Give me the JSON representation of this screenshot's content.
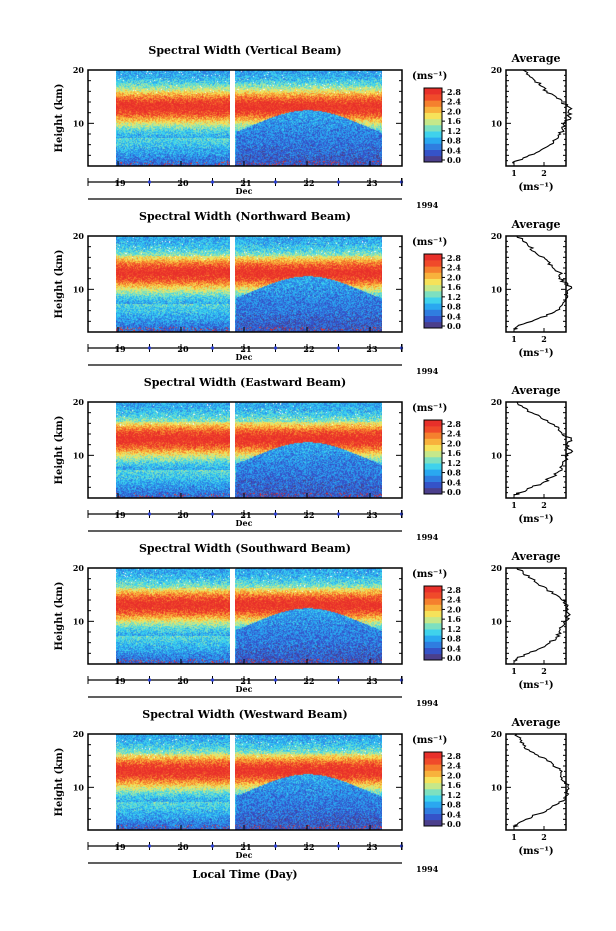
{
  "x_axis_label": "Local Time (Day)",
  "colors": {
    "colormap": [
      "#4b3f8c",
      "#3553c8",
      "#2f7de0",
      "#2aa8f0",
      "#3fd2ec",
      "#7de0c0",
      "#c6e88a",
      "#f6e25a",
      "#f8b23c",
      "#f5802e",
      "#f04a2a",
      "#e8302a"
    ]
  },
  "chart_data": [
    {
      "type": "heatmap",
      "title": "Spectral Width (Vertical Beam)",
      "ylabel": "Height (km)",
      "yticks": [
        10,
        20
      ],
      "ylim": [
        2,
        20
      ],
      "xticks": [
        "19",
        "20",
        "21",
        "22",
        "23"
      ],
      "month_label": "Dec",
      "year_label": "1994",
      "colorbar": {
        "unit": "(ms⁻¹)",
        "ticks": [
          "2.8",
          "2.4",
          "2.0",
          "1.6",
          "1.2",
          "0.8",
          "0.4",
          "0.0"
        ]
      },
      "profile": {
        "title": "Average",
        "xlabel": "(ms⁻¹)",
        "xticks": [
          "1",
          "2"
        ],
        "yticks": [
          10,
          20
        ],
        "heights": [
          2.5,
          3,
          4,
          5,
          6,
          7,
          8,
          9,
          10,
          11,
          12,
          13,
          14,
          15,
          16,
          17,
          18,
          19,
          20
        ],
        "values": [
          1.0,
          1.1,
          1.5,
          1.9,
          2.2,
          2.4,
          2.55,
          2.6,
          2.65,
          2.9,
          2.8,
          2.85,
          2.6,
          2.4,
          2.1,
          1.9,
          1.7,
          1.5,
          1.3
        ]
      }
    },
    {
      "type": "heatmap",
      "title": "Spectral Width (Northward Beam)",
      "ylabel": "Height (km)",
      "yticks": [
        10,
        20
      ],
      "ylim": [
        2,
        20
      ],
      "xticks": [
        "19",
        "20",
        "21",
        "22",
        "23"
      ],
      "month_label": "Dec",
      "year_label": "1994",
      "colorbar": {
        "unit": "(ms⁻¹)",
        "ticks": [
          "2.8",
          "2.4",
          "2.0",
          "1.6",
          "1.2",
          "0.8",
          "0.4",
          "0.0"
        ]
      },
      "profile": {
        "title": "Average",
        "xlabel": "(ms⁻¹)",
        "xticks": [
          "1",
          "2"
        ],
        "yticks": [
          10,
          20
        ],
        "heights": [
          2.5,
          3,
          4,
          5,
          6,
          7,
          8,
          9,
          10,
          11,
          12,
          13,
          14,
          15,
          16,
          17,
          18,
          19,
          20
        ],
        "values": [
          1.0,
          1.1,
          1.6,
          2.1,
          2.4,
          2.6,
          2.7,
          2.75,
          2.85,
          2.8,
          2.5,
          2.6,
          2.3,
          2.2,
          2.0,
          1.7,
          1.5,
          1.3,
          1.1
        ]
      }
    },
    {
      "type": "heatmap",
      "title": "Spectral Width (Eastward Beam)",
      "ylabel": "Height (km)",
      "yticks": [
        10,
        20
      ],
      "ylim": [
        2,
        20
      ],
      "xticks": [
        "19",
        "20",
        "21",
        "22",
        "23"
      ],
      "month_label": "Dec",
      "year_label": "1994",
      "colorbar": {
        "unit": "(ms⁻¹)",
        "ticks": [
          "2.8",
          "2.4",
          "2.0",
          "1.6",
          "1.2",
          "0.8",
          "0.4",
          "0.0"
        ]
      },
      "profile": {
        "title": "Average",
        "xlabel": "(ms⁻¹)",
        "xticks": [
          "1",
          "2"
        ],
        "yticks": [
          10,
          20
        ],
        "heights": [
          2.5,
          3,
          4,
          5,
          6,
          7,
          8,
          9,
          10,
          11,
          12,
          13,
          14,
          15,
          16,
          17,
          18,
          19,
          20
        ],
        "values": [
          1.0,
          1.2,
          1.6,
          2.0,
          2.3,
          2.5,
          2.6,
          2.7,
          2.8,
          2.9,
          2.75,
          2.9,
          2.6,
          2.5,
          2.2,
          1.9,
          1.6,
          1.3,
          1.1
        ]
      }
    },
    {
      "type": "heatmap",
      "title": "Spectral Width (Southward Beam)",
      "ylabel": "Height (km)",
      "yticks": [
        10,
        20
      ],
      "ylim": [
        2,
        20
      ],
      "xticks": [
        "19",
        "20",
        "21",
        "22",
        "23"
      ],
      "month_label": "Dec",
      "year_label": "1994",
      "colorbar": {
        "unit": "(ms⁻¹)",
        "ticks": [
          "2.8",
          "2.4",
          "2.0",
          "1.6",
          "1.2",
          "0.8",
          "0.4",
          "0.0"
        ]
      },
      "profile": {
        "title": "Average",
        "xlabel": "(ms⁻¹)",
        "xticks": [
          "1",
          "2"
        ],
        "yticks": [
          10,
          20
        ],
        "heights": [
          2.5,
          3,
          4,
          5,
          6,
          7,
          8,
          9,
          10,
          11,
          12,
          13,
          14,
          15,
          16,
          17,
          18,
          19,
          20
        ],
        "values": [
          1.0,
          1.1,
          1.5,
          1.9,
          2.2,
          2.4,
          2.5,
          2.6,
          2.7,
          2.8,
          2.75,
          2.8,
          2.6,
          2.4,
          2.1,
          1.8,
          1.6,
          1.3,
          1.1
        ]
      }
    },
    {
      "type": "heatmap",
      "title": "Spectral Width (Westward Beam)",
      "ylabel": "Height (km)",
      "yticks": [
        10,
        20
      ],
      "ylim": [
        2,
        20
      ],
      "xticks": [
        "19",
        "20",
        "21",
        "22",
        "23"
      ],
      "month_label": "Dec",
      "year_label": "1994",
      "colorbar": {
        "unit": "(ms⁻¹)",
        "ticks": [
          "2.8",
          "2.4",
          "2.0",
          "1.6",
          "1.2",
          "0.8",
          "0.4",
          "0.0"
        ]
      },
      "profile": {
        "title": "Average",
        "xlabel": "(ms⁻¹)",
        "xticks": [
          "1",
          "2"
        ],
        "yticks": [
          10,
          20
        ],
        "heights": [
          2.5,
          3,
          4,
          5,
          6,
          7,
          8,
          9,
          10,
          11,
          12,
          13,
          14,
          15,
          16,
          17,
          18,
          19,
          20
        ],
        "values": [
          1.0,
          1.1,
          1.4,
          1.8,
          2.2,
          2.5,
          2.7,
          2.75,
          2.8,
          2.7,
          2.55,
          2.6,
          2.3,
          2.1,
          1.8,
          1.5,
          1.3,
          1.2,
          1.1
        ]
      }
    }
  ]
}
